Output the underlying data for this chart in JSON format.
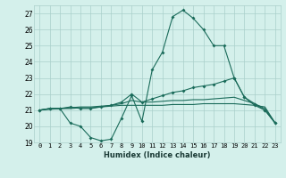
{
  "xlabel": "Humidex (Indice chaleur)",
  "bg_color": "#d4f0eb",
  "grid_color": "#aacfca",
  "line_color": "#1a6b5a",
  "x_ticks": [
    0,
    1,
    2,
    3,
    4,
    5,
    6,
    7,
    8,
    9,
    10,
    11,
    12,
    13,
    14,
    15,
    16,
    17,
    18,
    19,
    20,
    21,
    22,
    23
  ],
  "ylim": [
    19,
    27.5
  ],
  "yticks": [
    19,
    20,
    21,
    22,
    23,
    24,
    25,
    26,
    27
  ],
  "line1": [
    21.0,
    21.1,
    21.1,
    20.2,
    20.0,
    19.3,
    19.1,
    19.2,
    20.5,
    21.9,
    20.3,
    23.5,
    24.6,
    26.8,
    27.2,
    26.7,
    26.0,
    25.0,
    25.0,
    23.0,
    21.8,
    21.3,
    21.0,
    20.2
  ],
  "line2": [
    21.0,
    21.1,
    21.1,
    21.2,
    21.1,
    21.1,
    21.2,
    21.3,
    21.5,
    22.0,
    21.5,
    21.7,
    21.9,
    22.1,
    22.2,
    22.4,
    22.5,
    22.6,
    22.8,
    23.0,
    21.8,
    21.4,
    21.0,
    20.2
  ],
  "line3": [
    21.0,
    21.1,
    21.1,
    21.15,
    21.2,
    21.2,
    21.25,
    21.3,
    21.4,
    21.6,
    21.5,
    21.5,
    21.55,
    21.6,
    21.6,
    21.65,
    21.65,
    21.7,
    21.75,
    21.8,
    21.6,
    21.4,
    21.1,
    20.2
  ],
  "line4": [
    21.0,
    21.05,
    21.1,
    21.1,
    21.15,
    21.15,
    21.2,
    21.25,
    21.3,
    21.3,
    21.3,
    21.3,
    21.3,
    21.35,
    21.35,
    21.35,
    21.4,
    21.4,
    21.4,
    21.4,
    21.35,
    21.3,
    21.2,
    20.2
  ]
}
